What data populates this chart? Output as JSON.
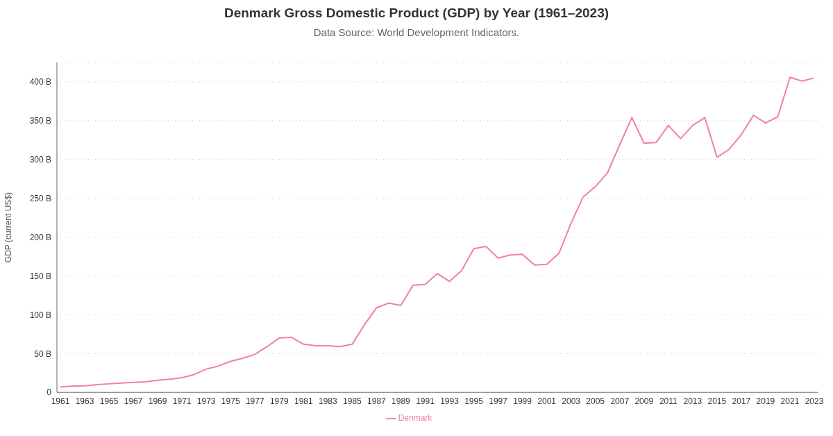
{
  "chart_data": {
    "type": "line",
    "title": "Denmark Gross Domestic Product (GDP) by Year (1961–2023)",
    "subtitle": "Data Source: World Development Indicators.",
    "ylabel": "GDP (current US$)",
    "categories": [
      "1961",
      null,
      "1963",
      null,
      "1965",
      null,
      "1967",
      null,
      "1969",
      null,
      "1971",
      null,
      "1973",
      null,
      "1975",
      null,
      "1977",
      null,
      "1979",
      null,
      "1981",
      null,
      "1983",
      null,
      "1985",
      null,
      "1987",
      null,
      "1989",
      null,
      "1991",
      null,
      "1993",
      null,
      "1995",
      null,
      "1997",
      null,
      "1999",
      null,
      "2001",
      null,
      "2003",
      null,
      "2005",
      null,
      "2007",
      null,
      "2009",
      null,
      "2011",
      null,
      "2013",
      null,
      "2015",
      null,
      "2017",
      null,
      "2019",
      null,
      "2021",
      null,
      "2023"
    ],
    "series": [
      {
        "name": "Denmark",
        "color": "#f07fa8",
        "values": [
          7,
          8,
          8.5,
          10,
          11,
          12,
          13,
          13.5,
          15.5,
          17,
          19,
          23,
          30,
          34,
          40,
          44,
          49,
          59,
          70,
          71,
          62,
          60,
          60,
          59,
          62,
          87,
          109,
          115,
          112,
          138,
          139,
          153,
          143,
          157,
          185,
          188,
          173,
          177,
          178,
          164,
          165,
          179,
          218,
          252,
          265,
          283,
          319,
          354,
          321,
          322,
          344,
          327,
          344,
          354,
          303,
          313,
          332,
          357,
          347,
          355,
          406,
          401,
          405
        ]
      }
    ],
    "ylim": [
      0,
      425
    ],
    "yticks": [
      0,
      {
        "value": 50,
        "label": "50 B"
      },
      {
        "value": 100,
        "label": "100 B"
      },
      {
        "value": 150,
        "label": "150 B"
      },
      {
        "value": 200,
        "label": "200 B"
      },
      {
        "value": 250,
        "label": "250 B"
      },
      {
        "value": 300,
        "label": "300 B"
      },
      {
        "value": 350,
        "label": "350 B"
      },
      {
        "value": 400,
        "label": "400 B"
      }
    ],
    "grid": "y",
    "legend": "bottom",
    "marker": "none",
    "line_style": "solid"
  }
}
